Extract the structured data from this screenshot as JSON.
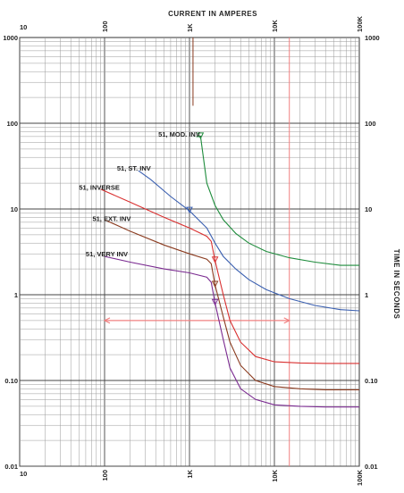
{
  "chart_data": {
    "type": "line",
    "title": "CURRENT IN AMPERES",
    "xlabel": "CURRENT IN AMPERES",
    "ylabel": "TIME IN SECONDS",
    "x_scale": "log",
    "y_scale": "log",
    "xlim": [
      10,
      100000
    ],
    "ylim": [
      0.01,
      1000
    ],
    "grid": true,
    "x_ticks": [
      {
        "value": 10,
        "label": "10"
      },
      {
        "value": 100,
        "label": "100"
      },
      {
        "value": 1000,
        "label": "1K"
      },
      {
        "value": 10000,
        "label": "10K"
      },
      {
        "value": 100000,
        "label": "100K"
      }
    ],
    "y_ticks_left": [
      {
        "value": 1000,
        "label": "1000"
      },
      {
        "value": 100,
        "label": "100"
      },
      {
        "value": 10,
        "label": "10"
      },
      {
        "value": 1,
        "label": "1"
      },
      {
        "value": 0.1,
        "label": "0.10"
      },
      {
        "value": 0.01,
        "label": "0.01"
      }
    ],
    "y_ticks_right": [
      {
        "value": 1000,
        "label": "1000"
      },
      {
        "value": 100,
        "label": "100"
      },
      {
        "value": 10,
        "label": "10"
      },
      {
        "value": 1,
        "label": "1"
      },
      {
        "value": 0.1,
        "label": "0.10"
      },
      {
        "value": 0.01,
        "label": "0.01"
      }
    ],
    "series": [
      {
        "name": "51, MOD. INV.",
        "color": "#1e8c3c",
        "x": [
          1200,
          1350,
          1600,
          2000,
          2500,
          3500,
          5000,
          8000,
          15000,
          30000,
          60000,
          100000
        ],
        "y": [
          70,
          70,
          20,
          11,
          7.5,
          5.2,
          4.0,
          3.2,
          2.7,
          2.4,
          2.2,
          2.2
        ]
      },
      {
        "name": "51, ST. INV",
        "color": "#3a5fb0",
        "x": [
          250,
          350,
          600,
          1000,
          1600,
          2000,
          2500,
          3500,
          5000,
          8000,
          15000,
          30000,
          60000,
          100000
        ],
        "y": [
          28,
          22,
          14,
          9.5,
          6.0,
          4.0,
          2.8,
          2.0,
          1.5,
          1.15,
          0.9,
          0.75,
          0.67,
          0.65
        ]
      },
      {
        "name": "51, INVERSE",
        "color": "#d93030",
        "x": [
          90,
          200,
          500,
          1000,
          1600,
          1800,
          2000,
          2500,
          3000,
          4000,
          6000,
          10000,
          20000,
          40000,
          100000
        ],
        "y": [
          17,
          12,
          8,
          6,
          4.8,
          4.2,
          2.5,
          1.0,
          0.5,
          0.28,
          0.19,
          0.165,
          0.16,
          0.158,
          0.158
        ]
      },
      {
        "name": "51, EXT. INV",
        "color": "#8a3a1e",
        "x": [
          100,
          200,
          500,
          1000,
          1600,
          1800,
          2000,
          2500,
          3000,
          4000,
          6000,
          10000,
          20000,
          40000,
          100000
        ],
        "y": [
          7.5,
          5.5,
          3.8,
          3.0,
          2.6,
          2.3,
          1.3,
          0.55,
          0.28,
          0.15,
          0.1,
          0.085,
          0.08,
          0.078,
          0.078
        ]
      },
      {
        "name": "51, VERY INV",
        "color": "#7a2a90",
        "x": [
          100,
          200,
          500,
          1000,
          1600,
          1800,
          2000,
          2500,
          3000,
          4000,
          6000,
          10000,
          20000,
          40000,
          100000
        ],
        "y": [
          2.8,
          2.4,
          2.0,
          1.8,
          1.6,
          1.4,
          0.8,
          0.3,
          0.14,
          0.08,
          0.06,
          0.052,
          0.05,
          0.049,
          0.049
        ]
      }
    ],
    "labels": [
      {
        "text": "51, MOD. INV.",
        "color": "#1e8c3c",
        "x": 430,
        "y": 75
      },
      {
        "text": "51, ST. INV",
        "color": "#3a5fb0",
        "x": 140,
        "y": 30
      },
      {
        "text": "51, INVERSE",
        "color": "#d93030",
        "x": 50,
        "y": 18
      },
      {
        "text": "51, EXT. INV",
        "color": "#8a3a1e",
        "x": 72,
        "y": 7.8
      },
      {
        "text": "51, VERY INV",
        "color": "#7a2a90",
        "x": 60,
        "y": 3.0
      }
    ],
    "reference_lines": [
      {
        "kind": "vertical",
        "color": "#8a3a1e",
        "x": 1100,
        "y_from": 1000,
        "y_to": 160
      },
      {
        "kind": "vertical",
        "color": "#f08080",
        "x": 15000,
        "y_from": 1000,
        "y_to": 0.01
      },
      {
        "kind": "horizontal",
        "color": "#f08080",
        "y": 0.5,
        "x_from": 100,
        "x_to": 15000
      }
    ]
  }
}
